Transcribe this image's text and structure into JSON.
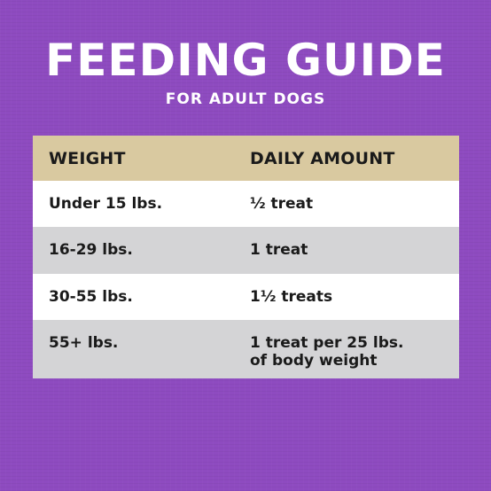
{
  "title": "FEEDING GUIDE",
  "subtitle": "FOR ADULT DOGS",
  "table": {
    "headers": [
      "WEIGHT",
      "DAILY AMOUNT"
    ],
    "rows": [
      {
        "weight": "Under 15 lbs.",
        "amount": [
          "½ treat"
        ]
      },
      {
        "weight": "16-29 lbs.",
        "amount": [
          "1 treat"
        ]
      },
      {
        "weight": "30-55 lbs.",
        "amount": [
          "1½ treats"
        ]
      },
      {
        "weight": "55+ lbs.",
        "amount": [
          "1 treat per 25 lbs.",
          "of body weight"
        ]
      }
    ]
  },
  "colors": {
    "background": "#8e4bc0",
    "header_row": "#d9c9a0",
    "row_white": "#ffffff",
    "row_gray": "#d4d4d6",
    "text_dark": "#1a1a1a",
    "title_text": "#ffffff"
  }
}
